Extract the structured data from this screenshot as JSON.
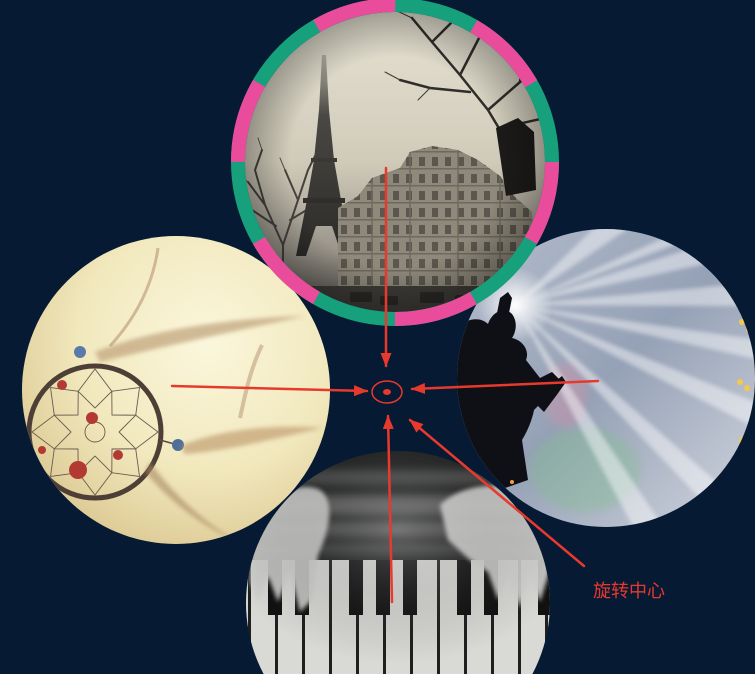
{
  "annotation": {
    "label": "旋转中心"
  },
  "colors": {
    "background": "#061a34",
    "arrow": "#e8392d",
    "ring": [
      "#17a07c",
      "#ea4c9c"
    ]
  }
}
